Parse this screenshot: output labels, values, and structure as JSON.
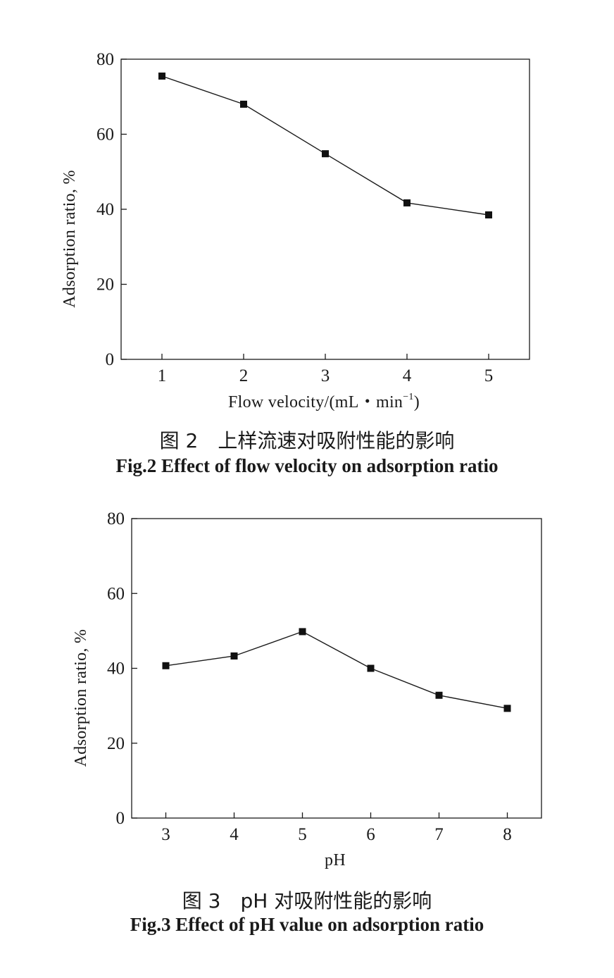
{
  "chart_data": [
    {
      "type": "line",
      "x": [
        1,
        2,
        3,
        4,
        5
      ],
      "series": [
        {
          "values": [
            75.5,
            68,
            54.8,
            41.7,
            38.5
          ]
        }
      ],
      "xlabel": "Flow velocity/(mL・min",
      "xlabel_sup": "−1",
      "xlabel_close": ")",
      "ylabel": "Adsorption ratio, %",
      "xlim": [
        0.5,
        5.5
      ],
      "ylim": [
        0,
        80
      ],
      "yticks": [
        0,
        20,
        40,
        60,
        80
      ],
      "xticks": [
        1,
        2,
        3,
        4,
        5
      ],
      "grid": false,
      "marker": "square",
      "caption_cn": "图 2　上样流速对吸附性能的影响",
      "caption_en": "Fig.2 Effect of flow velocity on adsorption ratio"
    },
    {
      "type": "line",
      "x": [
        3,
        4,
        5,
        6,
        7,
        8
      ],
      "series": [
        {
          "values": [
            40.7,
            43.3,
            49.8,
            40,
            32.8,
            29.3
          ]
        }
      ],
      "xlabel": "pH",
      "ylabel": "Adsorption ratio, %",
      "xlim": [
        2.5,
        8.5
      ],
      "ylim": [
        0,
        80
      ],
      "yticks": [
        0,
        20,
        40,
        60,
        80
      ],
      "xticks": [
        3,
        4,
        5,
        6,
        7,
        8
      ],
      "grid": false,
      "marker": "square",
      "caption_cn": "图 3　pH 对吸附性能的影响",
      "caption_en": "Fig.3 Effect of pH value on adsorption ratio"
    }
  ],
  "colors": {
    "line": "#1a1a1a",
    "marker": "#111111",
    "frame": "#1a1a1a"
  }
}
